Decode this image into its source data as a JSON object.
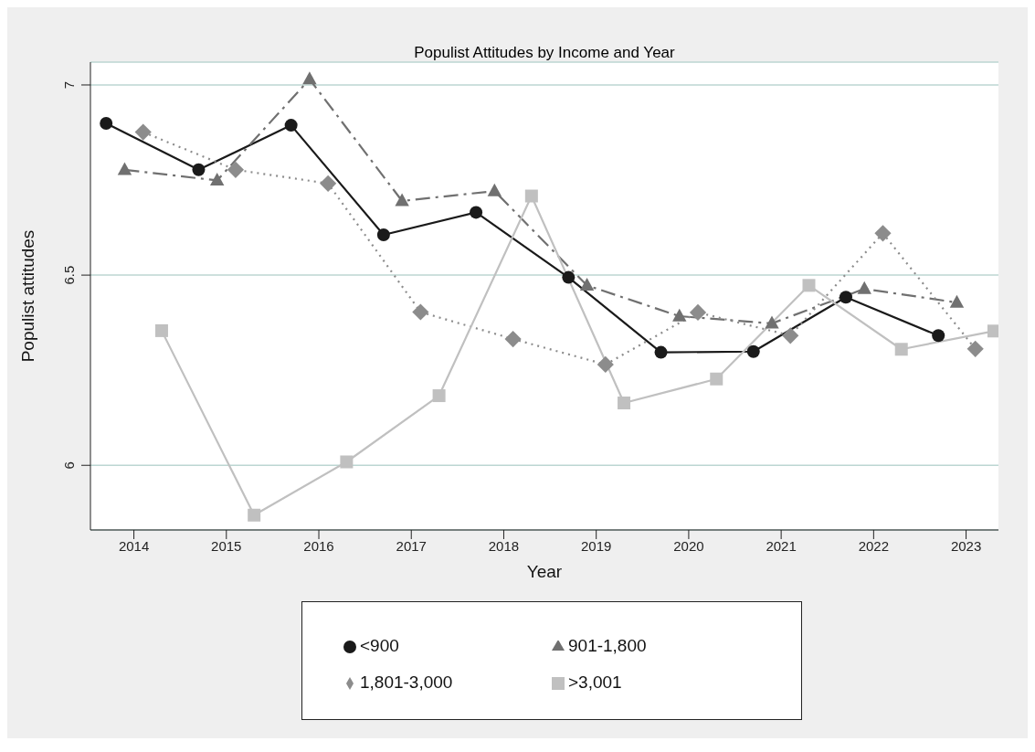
{
  "chart_data": {
    "type": "line",
    "title": "Populist Attitudes by Income and Year",
    "xlabel": "Year",
    "ylabel": "Populist attitudes",
    "xlim": [
      2013.53,
      2023.35
    ],
    "xticks": [
      2014,
      2015,
      2016,
      2017,
      2018,
      2019,
      2020,
      2021,
      2022,
      2023
    ],
    "ylim": [
      5.83,
      7.06
    ],
    "yticks": [
      6,
      6.5,
      7
    ],
    "grid": "y",
    "legend": "bottom",
    "series": [
      {
        "name": "<900",
        "color": "#1a1a1a",
        "marker": "circle",
        "line_style": "solid",
        "x": [
          2013.7,
          2014.7,
          2015.7,
          2016.7,
          2017.7,
          2018.7,
          2019.7,
          2020.7,
          2021.7,
          2022.7
        ],
        "values": [
          6.899,
          6.777,
          6.894,
          6.606,
          6.665,
          6.494,
          6.297,
          6.299,
          6.442,
          6.341
        ]
      },
      {
        "name": "901-1,800",
        "color": "#707070",
        "marker": "triangle",
        "line_style": "dashed",
        "x": [
          2013.9,
          2014.9,
          2015.9,
          2016.9,
          2017.9,
          2018.9,
          2019.9,
          2020.9,
          2021.9,
          2022.9
        ],
        "values": [
          6.777,
          6.749,
          7.015,
          6.695,
          6.721,
          6.473,
          6.392,
          6.373,
          6.464,
          6.428
        ]
      },
      {
        "name": "1,801-3,000",
        "color": "#8c8c8c",
        "marker": "diamond",
        "line_style": "dotted",
        "x": [
          2014.1,
          2015.1,
          2016.1,
          2017.1,
          2018.1,
          2019.1,
          2020.1,
          2021.1,
          2022.1,
          2023.1
        ],
        "values": [
          6.876,
          6.777,
          6.741,
          6.403,
          6.332,
          6.265,
          6.402,
          6.341,
          6.61,
          6.306
        ]
      },
      {
        "name": ">3,001",
        "color": "#c0c0c0",
        "marker": "square",
        "line_style": "solid",
        "x": [
          2014.3,
          2015.3,
          2016.3,
          2017.3,
          2018.3,
          2019.3,
          2020.3,
          2021.3,
          2022.3,
          2023.3
        ],
        "values": [
          6.354,
          5.869,
          6.009,
          6.183,
          6.708,
          6.164,
          6.227,
          6.473,
          6.305,
          6.353
        ]
      }
    ]
  }
}
